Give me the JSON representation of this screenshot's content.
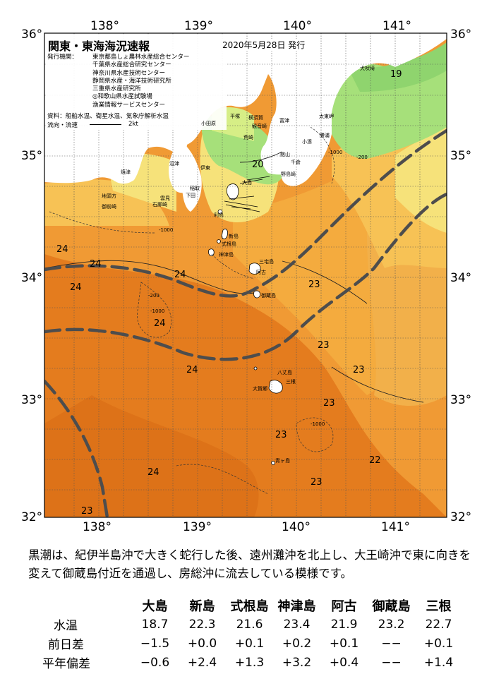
{
  "map": {
    "title": "関東・東海海況速報",
    "issue_date": "2020年5月28日 発行",
    "issuer_label": "発行機関：",
    "issuers": [
      "東京都島しょ農林水産総合センター",
      "千葉県水産総合研究センター",
      "神奈川県水産技術センター",
      "静岡県水産・海洋技術研究所",
      "三重県水産研究所",
      "◎和歌山県水産試験場",
      "漁業情報サービスセンター"
    ],
    "source_label": "資料：船舶水温、衛星水温、気象庁解析水温",
    "current_label": "流向・流速",
    "current_scale": "2kt",
    "lon_labels": [
      "138°",
      "139°",
      "140°",
      "141°"
    ],
    "lat_labels": [
      "36°",
      "35°",
      "34°",
      "33°",
      "32°"
    ],
    "temp_labels": [
      "19",
      "20",
      "24",
      "24",
      "24",
      "24",
      "24",
      "24",
      "24",
      "23",
      "23",
      "23",
      "23",
      "23",
      "23",
      "22",
      "23"
    ],
    "place_names": [
      "犬吠埼",
      "太東岬",
      "勝浦",
      "小湊",
      "館山",
      "千倉",
      "野島崎",
      "富津",
      "観音崎",
      "荒崎",
      "横須賀",
      "平塚",
      "小田原",
      "伊東",
      "沼津",
      "稲取",
      "下田",
      "雲見",
      "石廊崎",
      "焼津",
      "地頭方",
      "御前崎",
      "大島",
      "利島",
      "新島",
      "式根島",
      "神津島",
      "三宅島",
      "阿古",
      "御蔵島",
      "八丈島",
      "三根",
      "大賀郷",
      "青ヶ島"
    ],
    "isobath_labels": [
      "-1000",
      "-200",
      "-200",
      "-1000",
      "-1000",
      "-1000"
    ],
    "colors": {
      "warm_deep": "#e47c1e",
      "warm_mid": "#f09a34",
      "warm_light": "#f7c255",
      "yellow": "#f6e27a",
      "pale_green": "#d6ee86",
      "green": "#a6e07a",
      "land": "#ffffff",
      "kuroshio": "#4d4d4d"
    }
  },
  "description": "黒潮は、紀伊半島沖で大きく蛇行した後、遠州灘沖を北上し、大王崎沖で東に向きを変えて御蔵島付近を通過し、房総沖に流去している模様です。",
  "table": {
    "columns": [
      "大島",
      "新島",
      "式根島",
      "神津島",
      "阿古",
      "御蔵島",
      "三根"
    ],
    "rows": [
      {
        "label": "水温",
        "values": [
          "18.7",
          "22.3",
          "21.6",
          "23.4",
          "21.9",
          "23.2",
          "22.7"
        ]
      },
      {
        "label": "前日差",
        "values": [
          "−1.5",
          "+0.0",
          "+0.1",
          "+0.2",
          "+0.1",
          "−−",
          "+0.1"
        ]
      },
      {
        "label": "平年偏差",
        "values": [
          "−0.6",
          "+2.4",
          "+1.3",
          "+3.2",
          "+0.4",
          "−−",
          "+1.4"
        ]
      }
    ]
  }
}
